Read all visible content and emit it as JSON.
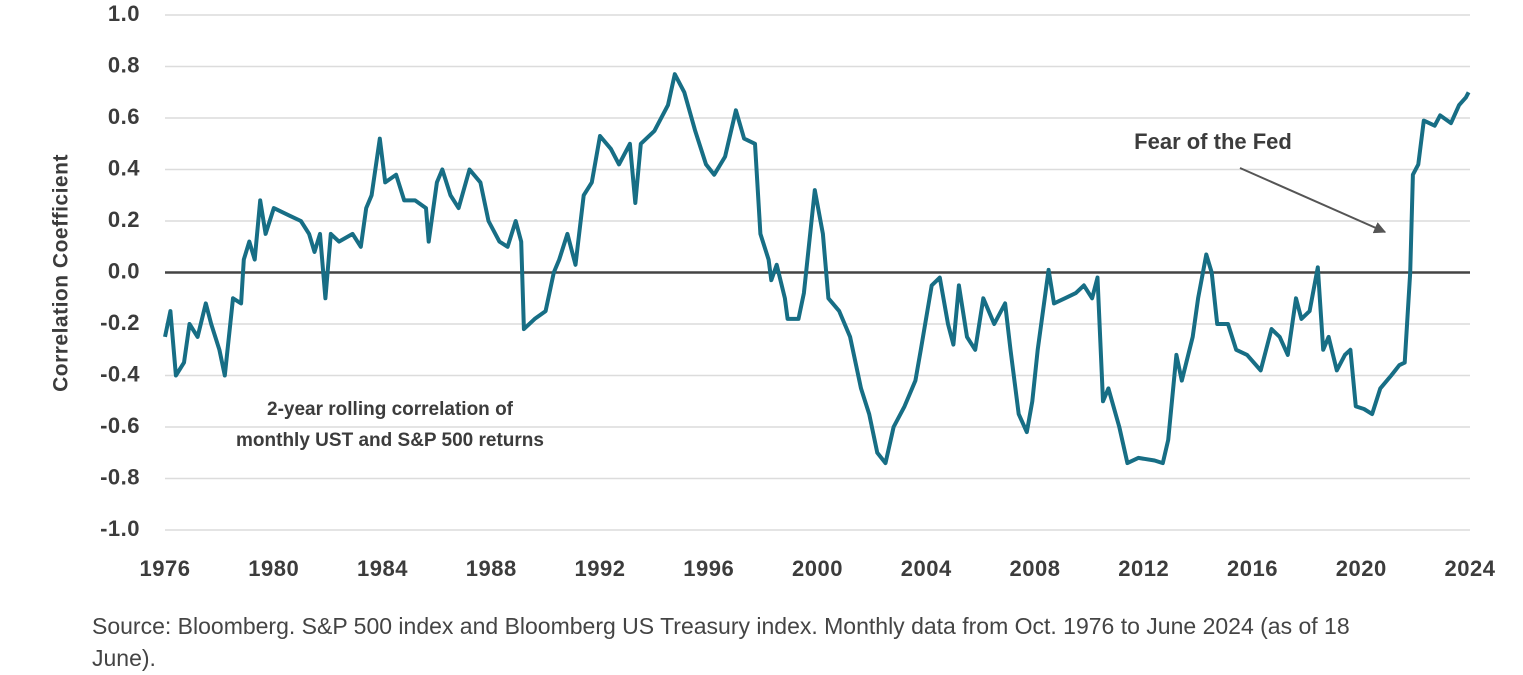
{
  "chart_data": {
    "type": "line",
    "y_label": "Correlation Coefficient",
    "annotation": "Fear of the Fed",
    "note": [
      "2-year rolling correlation of",
      "monthly UST and S&P 500 returns"
    ],
    "source": "Source: Bloomberg. S&P 500 index and Bloomberg US Treasury index. Monthly data from Oct. 1976 to June 2024 (as of 18 June).",
    "xlim": [
      1976,
      2024
    ],
    "xticks": [
      1976,
      1980,
      1984,
      1988,
      1992,
      1996,
      2000,
      2004,
      2008,
      2012,
      2016,
      2020,
      2024
    ],
    "ylim": [
      -1,
      1
    ],
    "yticks": [
      {
        "value": 1,
        "label": "1.0"
      },
      {
        "value": 0.8,
        "label": "0.8"
      },
      {
        "value": 0.6,
        "label": "0.6"
      },
      {
        "value": 0.4,
        "label": "0.4"
      },
      {
        "value": 0.2,
        "label": "0.2"
      },
      {
        "value": 0,
        "label": "0.0"
      },
      {
        "value": -0.2,
        "label": "-0.2"
      },
      {
        "value": -0.4,
        "label": "-0.4"
      },
      {
        "value": -0.6,
        "label": "-0.6"
      },
      {
        "value": -0.8,
        "label": "-0.8"
      },
      {
        "value": -1,
        "label": "-1.0"
      }
    ],
    "grid": true,
    "zero_line": true,
    "color": "#176e85",
    "x": [
      1976.0,
      1976.2,
      1976.4,
      1976.7,
      1976.9,
      1977.2,
      1977.5,
      1977.7,
      1978.0,
      1978.2,
      1978.5,
      1978.8,
      1978.9,
      1979.1,
      1979.3,
      1979.5,
      1979.7,
      1980.0,
      1980.6,
      1981.0,
      1981.3,
      1981.5,
      1981.7,
      1981.9,
      1982.1,
      1982.4,
      1982.9,
      1983.2,
      1983.4,
      1983.6,
      1983.9,
      1984.1,
      1984.5,
      1984.8,
      1985.2,
      1985.6,
      1985.7,
      1986.0,
      1986.2,
      1986.5,
      1986.8,
      1987.2,
      1987.6,
      1987.9,
      1988.3,
      1988.6,
      1988.9,
      1989.1,
      1989.2,
      1989.6,
      1990.0,
      1990.3,
      1990.5,
      1990.8,
      1991.1,
      1991.4,
      1991.7,
      1992.0,
      1992.4,
      1992.7,
      1993.1,
      1993.3,
      1993.5,
      1994.0,
      1994.5,
      1994.75,
      1995.1,
      1995.5,
      1995.9,
      1996.2,
      1996.6,
      1997.0,
      1997.3,
      1997.7,
      1997.9,
      1998.2,
      1998.3,
      1998.5,
      1998.8,
      1998.9,
      1999.3,
      1999.5,
      1999.9,
      2000.2,
      2000.4,
      2000.8,
      2001.2,
      2001.6,
      2001.9,
      2002.2,
      2002.5,
      2002.8,
      2003.2,
      2003.6,
      2003.8,
      2004.2,
      2004.5,
      2004.8,
      2005.0,
      2005.2,
      2005.5,
      2005.8,
      2006.1,
      2006.5,
      2006.9,
      2007.1,
      2007.4,
      2007.7,
      2007.9,
      2008.1,
      2008.5,
      2008.7,
      2009.1,
      2009.5,
      2009.8,
      2010.1,
      2010.3,
      2010.5,
      2010.7,
      2011.1,
      2011.4,
      2011.8,
      2012.4,
      2012.7,
      2012.9,
      2013.2,
      2013.4,
      2013.8,
      2014.0,
      2014.3,
      2014.5,
      2014.7,
      2015.1,
      2015.4,
      2015.8,
      2016.3,
      2016.7,
      2017.0,
      2017.3,
      2017.6,
      2017.8,
      2018.1,
      2018.4,
      2018.6,
      2018.8,
      2019.1,
      2019.4,
      2019.6,
      2019.8,
      2020.1,
      2020.4,
      2020.7,
      2021.1,
      2021.4,
      2021.6,
      2021.8,
      2021.9,
      2022.1,
      2022.3,
      2022.7,
      2022.9,
      2023.3,
      2023.6,
      2023.85,
      2023.95
    ],
    "values": [
      -0.25,
      -0.15,
      -0.4,
      -0.35,
      -0.2,
      -0.25,
      -0.12,
      -0.2,
      -0.3,
      -0.4,
      -0.1,
      -0.12,
      0.05,
      0.12,
      0.05,
      0.28,
      0.15,
      0.25,
      0.22,
      0.2,
      0.15,
      0.08,
      0.15,
      -0.1,
      0.15,
      0.12,
      0.15,
      0.1,
      0.25,
      0.3,
      0.52,
      0.35,
      0.38,
      0.28,
      0.28,
      0.25,
      0.12,
      0.35,
      0.4,
      0.3,
      0.25,
      0.4,
      0.35,
      0.2,
      0.12,
      0.1,
      0.2,
      0.12,
      -0.22,
      -0.18,
      -0.15,
      0.0,
      0.05,
      0.15,
      0.03,
      0.3,
      0.35,
      0.53,
      0.48,
      0.42,
      0.5,
      0.27,
      0.5,
      0.55,
      0.65,
      0.77,
      0.7,
      0.55,
      0.42,
      0.38,
      0.45,
      0.63,
      0.52,
      0.5,
      0.15,
      0.05,
      -0.03,
      0.03,
      -0.1,
      -0.18,
      -0.18,
      -0.08,
      0.32,
      0.15,
      -0.1,
      -0.15,
      -0.25,
      -0.45,
      -0.55,
      -0.7,
      -0.74,
      -0.6,
      -0.52,
      -0.42,
      -0.3,
      -0.05,
      -0.02,
      -0.2,
      -0.28,
      -0.05,
      -0.25,
      -0.3,
      -0.1,
      -0.2,
      -0.12,
      -0.3,
      -0.55,
      -0.62,
      -0.5,
      -0.3,
      0.01,
      -0.12,
      -0.1,
      -0.08,
      -0.05,
      -0.1,
      -0.02,
      -0.5,
      -0.45,
      -0.6,
      -0.74,
      -0.72,
      -0.73,
      -0.74,
      -0.65,
      -0.32,
      -0.42,
      -0.25,
      -0.1,
      0.07,
      0.0,
      -0.2,
      -0.2,
      -0.3,
      -0.32,
      -0.38,
      -0.22,
      -0.25,
      -0.32,
      -0.1,
      -0.18,
      -0.15,
      0.02,
      -0.3,
      -0.25,
      -0.38,
      -0.32,
      -0.3,
      -0.52,
      -0.53,
      -0.55,
      -0.45,
      -0.4,
      -0.36,
      -0.35,
      0.0,
      0.38,
      0.42,
      0.59,
      0.57,
      0.61,
      0.58,
      0.65,
      0.68,
      0.7
    ]
  }
}
